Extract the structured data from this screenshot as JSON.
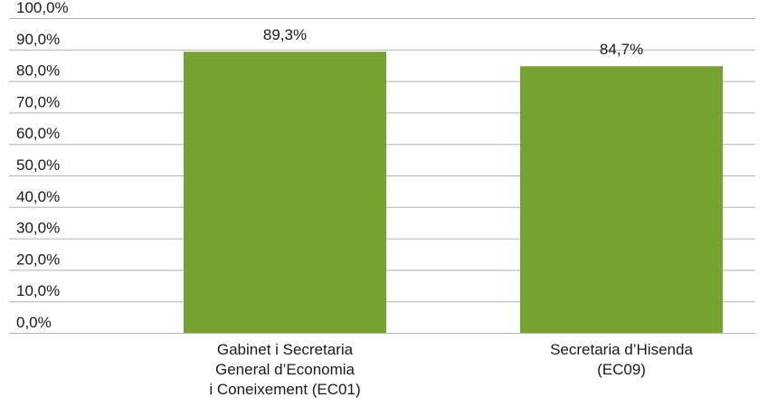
{
  "chart_data": {
    "type": "bar",
    "categories": [
      [
        "Gabinet i Secretaria",
        "General d’Economia",
        "i Coneixement (EC01)"
      ],
      [
        "Secretaria d’Hisenda",
        "(EC09)"
      ]
    ],
    "values": [
      89.3,
      84.7
    ],
    "data_labels": [
      "89,3%",
      "84,7%"
    ],
    "y_ticks": [
      "0,0%",
      "10,0%",
      "20,0%",
      "30,0%",
      "40,0%",
      "50,0%",
      "60,0%",
      "70,0%",
      "80,0%",
      "90,0%",
      "100,0%"
    ],
    "ylim": [
      0,
      100
    ],
    "grid": true,
    "colors": {
      "bar": "#78a22f",
      "grid": "#b3b3b3"
    }
  }
}
